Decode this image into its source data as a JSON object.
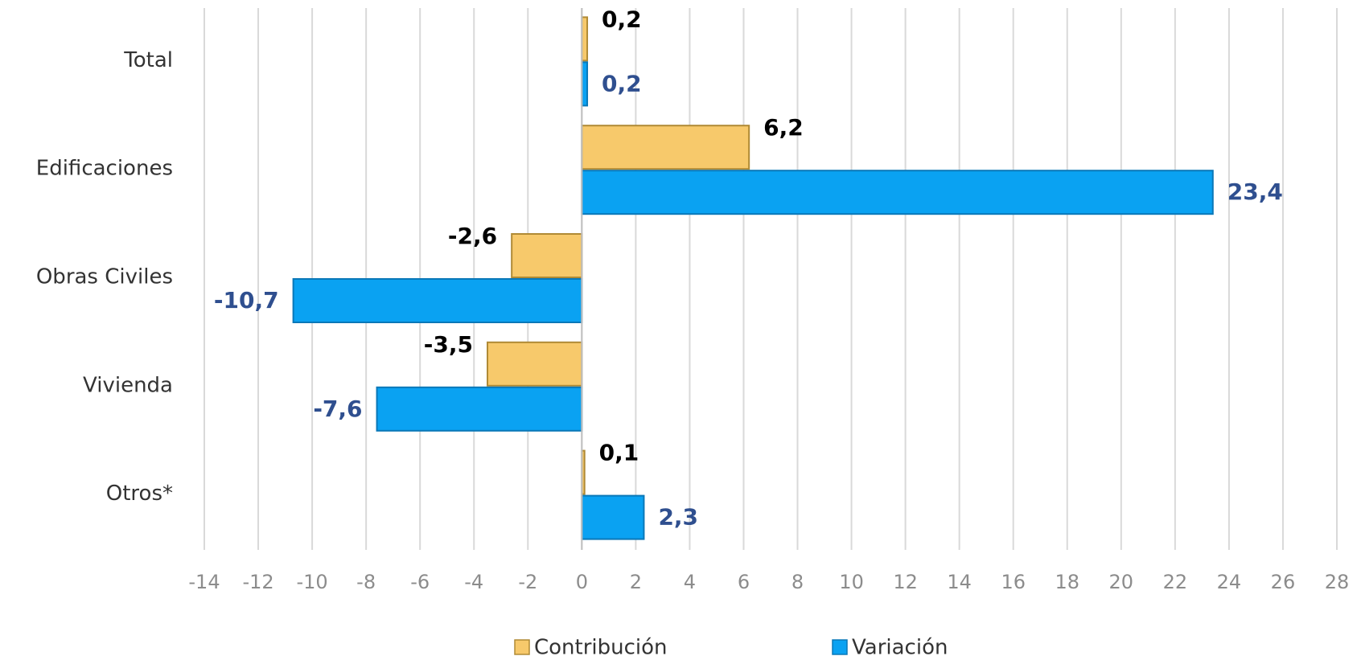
{
  "chart_data": {
    "type": "bar",
    "orientation": "horizontal",
    "categories": [
      "Total",
      "Edificaciones",
      "Obras Civiles",
      "Vivienda",
      "Otros*"
    ],
    "series": [
      {
        "name": "Contribución",
        "color": "#f7c96b",
        "values": [
          0.2,
          6.2,
          -2.6,
          -3.5,
          0.1
        ],
        "value_labels": [
          "0,2",
          "6,2",
          "-2,6",
          "-3,5",
          "0,1"
        ],
        "label_color": "#000000"
      },
      {
        "name": "Variación",
        "color": "#0aa2f2",
        "values": [
          0.2,
          23.4,
          -10.7,
          -7.6,
          2.3
        ],
        "value_labels": [
          "0,2",
          "23,4",
          "-10,7",
          "-7,6",
          "2,3"
        ],
        "label_color": "#2f4f8f"
      }
    ],
    "xlim": [
      -14,
      28
    ],
    "xticks": [
      -14,
      -12,
      -10,
      -8,
      -6,
      -4,
      -2,
      0,
      2,
      4,
      6,
      8,
      10,
      12,
      14,
      16,
      18,
      20,
      22,
      24,
      26,
      28
    ],
    "grid": true,
    "legend": "bottom"
  }
}
